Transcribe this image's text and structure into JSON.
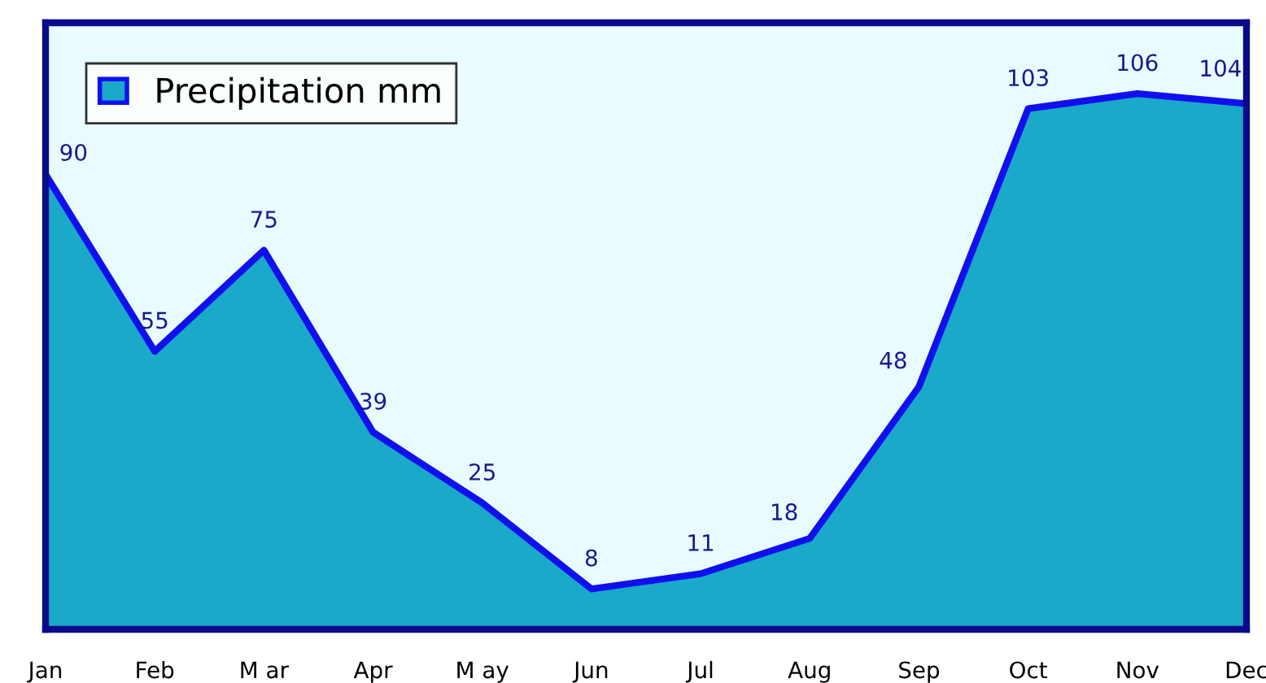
{
  "chart_data": {
    "type": "area",
    "categories": [
      "Jan",
      "Feb",
      "M ar",
      "Apr",
      "M ay",
      "Jun",
      "Jul",
      "Aug",
      "Sep",
      "Oct",
      "Nov",
      "Dec"
    ],
    "series": [
      {
        "name": "Precipitation mm",
        "color": "#1aa9c8",
        "values": [
          90,
          55,
          75,
          39,
          25,
          8,
          11,
          18,
          48,
          103,
          106,
          104
        ]
      }
    ],
    "ylim": [
      0,
      120
    ],
    "data_labels": true,
    "legend": "top left",
    "grid": false
  }
}
